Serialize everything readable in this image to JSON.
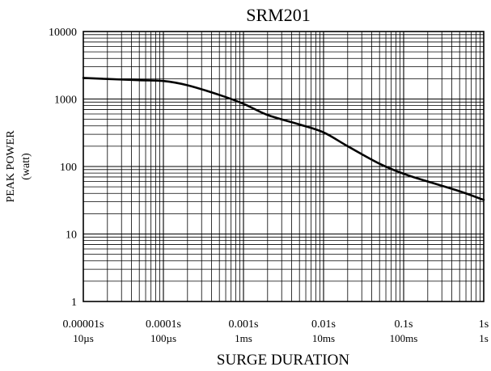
{
  "chart_data": {
    "type": "line",
    "title": "SRM201",
    "xlabel": "SURGE DURATION",
    "ylabel": "PEAK POWER",
    "ylabel_unit": "(watt)",
    "x_scale": "log",
    "y_scale": "log",
    "xlim": [
      1e-05,
      1
    ],
    "ylim": [
      1,
      10000
    ],
    "grid": true,
    "legend": "none",
    "line_color": "#000000",
    "x_ticks": [
      {
        "value": 1e-05,
        "label": "0.00001s",
        "sublabel": "10µs"
      },
      {
        "value": 0.0001,
        "label": "0.0001s",
        "sublabel": "100µs"
      },
      {
        "value": 0.001,
        "label": "0.001s",
        "sublabel": "1ms"
      },
      {
        "value": 0.01,
        "label": "0.01s",
        "sublabel": "10ms"
      },
      {
        "value": 0.1,
        "label": "0.1s",
        "sublabel": "100ms"
      },
      {
        "value": 1,
        "label": "1s",
        "sublabel": "1s"
      }
    ],
    "y_ticks": [
      {
        "value": 1,
        "label": "1"
      },
      {
        "value": 10,
        "label": "10"
      },
      {
        "value": 100,
        "label": "100"
      },
      {
        "value": 1000,
        "label": "1000"
      },
      {
        "value": 10000,
        "label": "10000"
      }
    ],
    "series": [
      {
        "x": [
          1e-05,
          2e-05,
          5e-05,
          0.0001,
          0.0002,
          0.0005,
          0.001,
          0.002,
          0.005,
          0.01,
          0.02,
          0.05,
          0.1,
          0.2,
          0.5,
          1
        ],
        "y": [
          2050,
          1980,
          1900,
          1850,
          1600,
          1150,
          850,
          580,
          420,
          320,
          200,
          110,
          78,
          60,
          43,
          32
        ]
      }
    ]
  }
}
